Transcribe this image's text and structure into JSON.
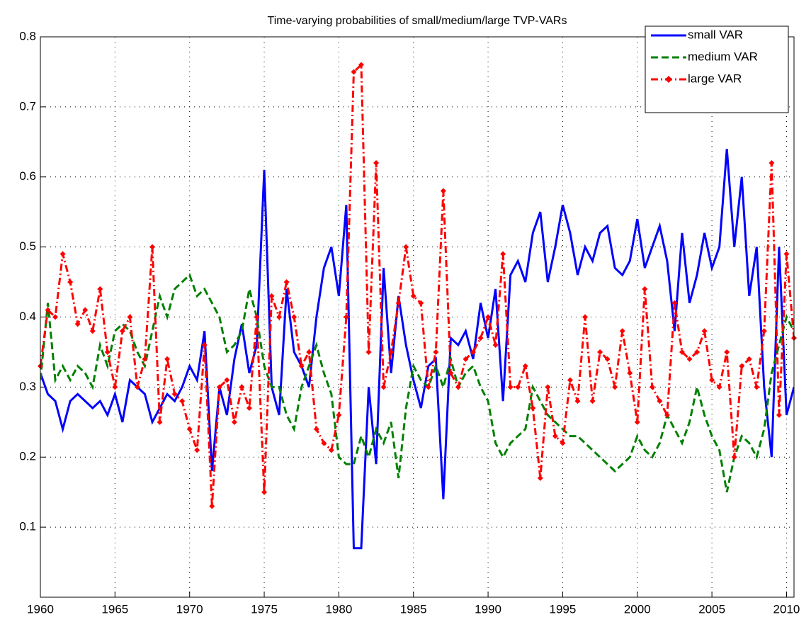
{
  "chart_data": {
    "type": "line",
    "title": "Time-varying probabilities of small/medium/large TVP-VARs",
    "x": [
      1960,
      1960.5,
      1961,
      1961.5,
      1962,
      1962.5,
      1963,
      1963.5,
      1964,
      1964.5,
      1965,
      1965.5,
      1966,
      1966.5,
      1967,
      1967.5,
      1968,
      1968.5,
      1969,
      1969.5,
      1970,
      1970.5,
      1971,
      1971.5,
      1972,
      1972.5,
      1973,
      1973.5,
      1974,
      1974.5,
      1975,
      1975.5,
      1976,
      1976.5,
      1977,
      1977.5,
      1978,
      1978.5,
      1979,
      1979.5,
      1980,
      1980.5,
      1981,
      1981.5,
      1982,
      1982.5,
      1983,
      1983.5,
      1984,
      1984.5,
      1985,
      1985.5,
      1986,
      1986.5,
      1987,
      1987.5,
      1988,
      1988.5,
      1989,
      1989.5,
      1990,
      1990.5,
      1991,
      1991.5,
      1992,
      1992.5,
      1993,
      1993.5,
      1994,
      1994.5,
      1995,
      1995.5,
      1996,
      1996.5,
      1997,
      1997.5,
      1998,
      1998.5,
      1999,
      1999.5,
      2000,
      2000.5,
      2001,
      2001.5,
      2002,
      2002.5,
      2003,
      2003.5,
      2004,
      2004.5,
      2005,
      2005.5,
      2006,
      2006.5,
      2007,
      2007.5,
      2008,
      2008.5,
      2009,
      2009.5,
      2010,
      2010.5
    ],
    "series": [
      {
        "name": "small VAR",
        "color": "#0000ff",
        "linestyle": "solid",
        "values": [
          0.32,
          0.29,
          0.28,
          0.24,
          0.28,
          0.29,
          0.28,
          0.27,
          0.28,
          0.26,
          0.29,
          0.25,
          0.31,
          0.3,
          0.29,
          0.25,
          0.27,
          0.29,
          0.28,
          0.3,
          0.33,
          0.31,
          0.38,
          0.18,
          0.3,
          0.26,
          0.34,
          0.39,
          0.32,
          0.36,
          0.61,
          0.3,
          0.26,
          0.44,
          0.35,
          0.33,
          0.3,
          0.4,
          0.47,
          0.5,
          0.43,
          0.56,
          0.07,
          0.07,
          0.3,
          0.19,
          0.47,
          0.32,
          0.43,
          0.36,
          0.31,
          0.27,
          0.33,
          0.34,
          0.14,
          0.37,
          0.36,
          0.38,
          0.34,
          0.42,
          0.37,
          0.44,
          0.28,
          0.46,
          0.48,
          0.45,
          0.52,
          0.55,
          0.45,
          0.5,
          0.56,
          0.52,
          0.46,
          0.5,
          0.48,
          0.52,
          0.53,
          0.47,
          0.46,
          0.48,
          0.54,
          0.47,
          0.5,
          0.53,
          0.48,
          0.38,
          0.52,
          0.42,
          0.46,
          0.52,
          0.47,
          0.5,
          0.64,
          0.5,
          0.6,
          0.43,
          0.5,
          0.3,
          0.2,
          0.5,
          0.26,
          0.3
        ]
      },
      {
        "name": "medium VAR",
        "color": "#008000",
        "linestyle": "dashed",
        "values": [
          0.31,
          0.42,
          0.31,
          0.33,
          0.31,
          0.33,
          0.32,
          0.3,
          0.36,
          0.33,
          0.38,
          0.39,
          0.38,
          0.35,
          0.33,
          0.38,
          0.43,
          0.4,
          0.44,
          0.45,
          0.46,
          0.43,
          0.44,
          0.42,
          0.4,
          0.35,
          0.36,
          0.38,
          0.44,
          0.4,
          0.33,
          0.3,
          0.3,
          0.26,
          0.24,
          0.3,
          0.33,
          0.36,
          0.32,
          0.29,
          0.2,
          0.19,
          0.19,
          0.23,
          0.2,
          0.24,
          0.22,
          0.25,
          0.17,
          0.27,
          0.33,
          0.31,
          0.3,
          0.33,
          0.3,
          0.34,
          0.3,
          0.32,
          0.33,
          0.3,
          0.28,
          0.22,
          0.2,
          0.22,
          0.23,
          0.24,
          0.3,
          0.28,
          0.26,
          0.25,
          0.24,
          0.23,
          0.23,
          0.22,
          0.21,
          0.2,
          0.19,
          0.18,
          0.19,
          0.2,
          0.23,
          0.21,
          0.2,
          0.22,
          0.26,
          0.24,
          0.22,
          0.25,
          0.3,
          0.26,
          0.23,
          0.21,
          0.15,
          0.2,
          0.23,
          0.22,
          0.2,
          0.24,
          0.32,
          0.36,
          0.4,
          0.38
        ]
      },
      {
        "name": "large VAR",
        "color": "#ff0000",
        "linestyle": "dashdot",
        "marker": "diamond",
        "values": [
          0.33,
          0.41,
          0.4,
          0.49,
          0.45,
          0.39,
          0.41,
          0.38,
          0.44,
          0.35,
          0.3,
          0.38,
          0.4,
          0.3,
          0.34,
          0.5,
          0.25,
          0.34,
          0.29,
          0.28,
          0.24,
          0.21,
          0.36,
          0.13,
          0.3,
          0.31,
          0.25,
          0.3,
          0.27,
          0.4,
          0.15,
          0.43,
          0.4,
          0.45,
          0.4,
          0.33,
          0.35,
          0.24,
          0.22,
          0.21,
          0.26,
          0.4,
          0.75,
          0.76,
          0.35,
          0.62,
          0.3,
          0.35,
          0.42,
          0.5,
          0.43,
          0.42,
          0.3,
          0.35,
          0.58,
          0.32,
          0.3,
          0.34,
          0.35,
          0.37,
          0.4,
          0.36,
          0.49,
          0.3,
          0.3,
          0.33,
          0.27,
          0.17,
          0.3,
          0.23,
          0.22,
          0.31,
          0.28,
          0.4,
          0.28,
          0.35,
          0.34,
          0.3,
          0.38,
          0.32,
          0.25,
          0.44,
          0.3,
          0.28,
          0.26,
          0.42,
          0.35,
          0.34,
          0.35,
          0.38,
          0.31,
          0.3,
          0.35,
          0.2,
          0.33,
          0.34,
          0.3,
          0.38,
          0.62,
          0.26,
          0.49,
          0.37
        ]
      }
    ],
    "xlim": [
      1960,
      2010.5
    ],
    "xticks": [
      1960,
      1965,
      1970,
      1975,
      1980,
      1985,
      1990,
      1995,
      2000,
      2005,
      2010
    ],
    "ylim": [
      0,
      0.8
    ],
    "yticks": [
      0.1,
      0.2,
      0.3,
      0.4,
      0.5,
      0.6,
      0.7,
      0.8
    ],
    "grid": true,
    "legend": "upper right"
  }
}
